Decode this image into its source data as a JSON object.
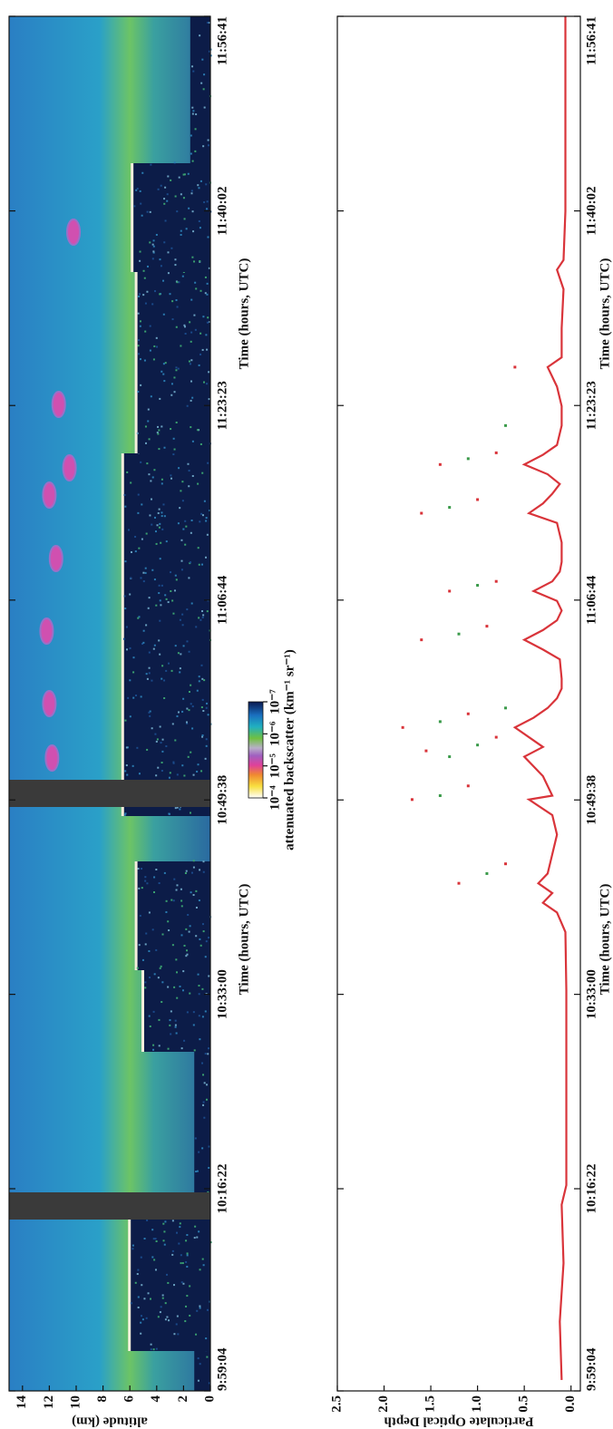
{
  "chart_data": [
    {
      "type": "image",
      "xlabel": "Time (hours, UTC)",
      "ylabel": "altitude (km)",
      "xlim": [
        35944,
        43001
      ],
      "xticks": [
        {
          "value": 35944,
          "label": "9:59:04"
        },
        {
          "value": 36982,
          "label": "10:16:22"
        },
        {
          "value": 37980,
          "label": "10:33:00"
        },
        {
          "value": 38978,
          "label": "10:49:38"
        },
        {
          "value": 40004,
          "label": "11:06:44"
        },
        {
          "value": 41003,
          "label": "11:23:23"
        },
        {
          "value": 42002,
          "label": "11:40:02"
        },
        {
          "value": 43001,
          "label": "11:56:41"
        }
      ],
      "ylim": [
        0,
        15
      ],
      "yticks": [
        0,
        2,
        4,
        6,
        8,
        10,
        12,
        14
      ],
      "colorbar": {
        "label": "attenuated backscatter (km⁻¹ sr⁻¹)",
        "log": true,
        "lim": [
          0.0001,
          1e-07
        ],
        "ticks": [
          {
            "value": 0.0001,
            "label": "10⁻⁴"
          },
          {
            "value": 1e-05,
            "label": "10⁻⁵"
          },
          {
            "value": 1e-06,
            "label": "10⁻⁶"
          },
          {
            "value": 1e-07,
            "label": "10⁻⁷"
          }
        ]
      }
    },
    {
      "type": "line",
      "xlabel": "Time (hours, UTC)",
      "ylabel": "Particulate Optical Depth",
      "xlim": [
        35944,
        43001
      ],
      "xticks": [
        {
          "value": 35944,
          "label": "9:59:04"
        },
        {
          "value": 36982,
          "label": "10:16:22"
        },
        {
          "value": 37980,
          "label": "10:33:00"
        },
        {
          "value": 38978,
          "label": "10:49:38"
        },
        {
          "value": 40004,
          "label": "11:06:44"
        },
        {
          "value": 41003,
          "label": "11:23:23"
        },
        {
          "value": 42002,
          "label": "11:40:02"
        },
        {
          "value": 43001,
          "label": "11:56:41"
        }
      ],
      "ylim": [
        -0.1,
        2.5
      ],
      "yticks": [
        {
          "value": 0,
          "label": "0.0"
        },
        0.5,
        {
          "value": 1,
          "label": "1.0"
        },
        1.5,
        {
          "value": 2,
          "label": "2.0"
        },
        2.5
      ],
      "series": [
        {
          "type": "line",
          "color": "#d9343a",
          "x": [
            36000,
            36300,
            36600,
            36900,
            37000,
            37500,
            38000,
            38300,
            38400,
            38450,
            38500,
            38550,
            38600,
            38700,
            38800,
            38900,
            38980,
            39000,
            39100,
            39200,
            39250,
            39350,
            39400,
            39450,
            39500,
            39550,
            39600,
            39700,
            39750,
            39800,
            39850,
            39900,
            39950,
            40000,
            40050,
            40100,
            40150,
            40200,
            40300,
            40400,
            40450,
            40500,
            40550,
            40600,
            40650,
            40700,
            40750,
            40800,
            40900,
            41000,
            41100,
            41200,
            41250,
            41400,
            41600,
            41700,
            41750,
            42000,
            42500,
            43000
          ],
          "values": [
            0.1,
            0.12,
            0.08,
            0.1,
            0.05,
            0.05,
            0.05,
            0.06,
            0.15,
            0.3,
            0.2,
            0.35,
            0.25,
            0.2,
            0.15,
            0.2,
            0.45,
            0.2,
            0.3,
            0.5,
            0.3,
            0.6,
            0.4,
            0.25,
            0.15,
            0.1,
            0.1,
            0.12,
            0.3,
            0.5,
            0.3,
            0.15,
            0.1,
            0.15,
            0.4,
            0.2,
            0.12,
            0.1,
            0.1,
            0.15,
            0.45,
            0.3,
            0.2,
            0.12,
            0.25,
            0.5,
            0.3,
            0.15,
            0.1,
            0.1,
            0.15,
            0.25,
            0.1,
            0.1,
            0.08,
            0.15,
            0.08,
            0.06,
            0.06,
            0.06
          ]
        },
        {
          "type": "scatter",
          "color": "#d9343a",
          "x": [
            38550,
            38650,
            38980,
            39050,
            39230,
            39300,
            39350,
            39420,
            39800,
            39870,
            40050,
            40100,
            40450,
            40520,
            40700,
            40760,
            41200
          ],
          "values": [
            1.2,
            0.7,
            1.7,
            1.1,
            1.55,
            0.8,
            1.8,
            1.1,
            1.6,
            0.9,
            1.3,
            0.8,
            1.6,
            1.0,
            1.4,
            0.8,
            0.6
          ]
        },
        {
          "type": "scatter",
          "color": "#3a9a4a",
          "x": [
            38600,
            39000,
            39200,
            39260,
            39380,
            39450,
            39830,
            40080,
            40480,
            40730,
            40900
          ],
          "values": [
            0.9,
            1.4,
            1.3,
            1.0,
            1.4,
            0.7,
            1.2,
            1.0,
            1.3,
            1.1,
            0.7
          ]
        }
      ]
    }
  ]
}
